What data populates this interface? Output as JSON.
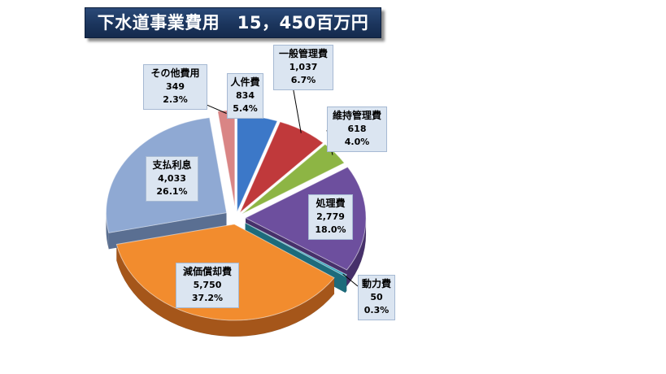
{
  "chart_data": {
    "type": "pie",
    "title": "下水道事業費用　15，450百万円",
    "slices": [
      {
        "label": "人件費",
        "value": "834",
        "percent": "5.4%",
        "num": 834,
        "color": "#3c78c8",
        "side": "#1f4f8f"
      },
      {
        "label": "一般管理費",
        "value": "1,037",
        "percent": "6.7%",
        "num": 1037,
        "color": "#c0393b",
        "side": "#7d2222"
      },
      {
        "label": "維持管理費",
        "value": "618",
        "percent": "4.0%",
        "num": 618,
        "color": "#8db544",
        "side": "#5a7a25"
      },
      {
        "label": "処理費",
        "value": "2,779",
        "percent": "18.0%",
        "num": 2779,
        "color": "#6d4f9e",
        "side": "#46306a"
      },
      {
        "label": "動力費",
        "value": "50",
        "percent": "0.3%",
        "num": 50,
        "color": "#35a6bd",
        "side": "#1d6b7b"
      },
      {
        "label": "減価償却費",
        "value": "5,750",
        "percent": "37.2%",
        "num": 5750,
        "color": "#f28c2e",
        "side": "#a5561a"
      },
      {
        "label": "支払利息",
        "value": "4,033",
        "percent": "26.1%",
        "num": 4033,
        "color": "#8fa9d3",
        "side": "#5a6f92"
      },
      {
        "label": "その他費用",
        "value": "349",
        "percent": "2.3%",
        "num": 349,
        "color": "#d98585",
        "side": "#9a5151"
      }
    ]
  }
}
